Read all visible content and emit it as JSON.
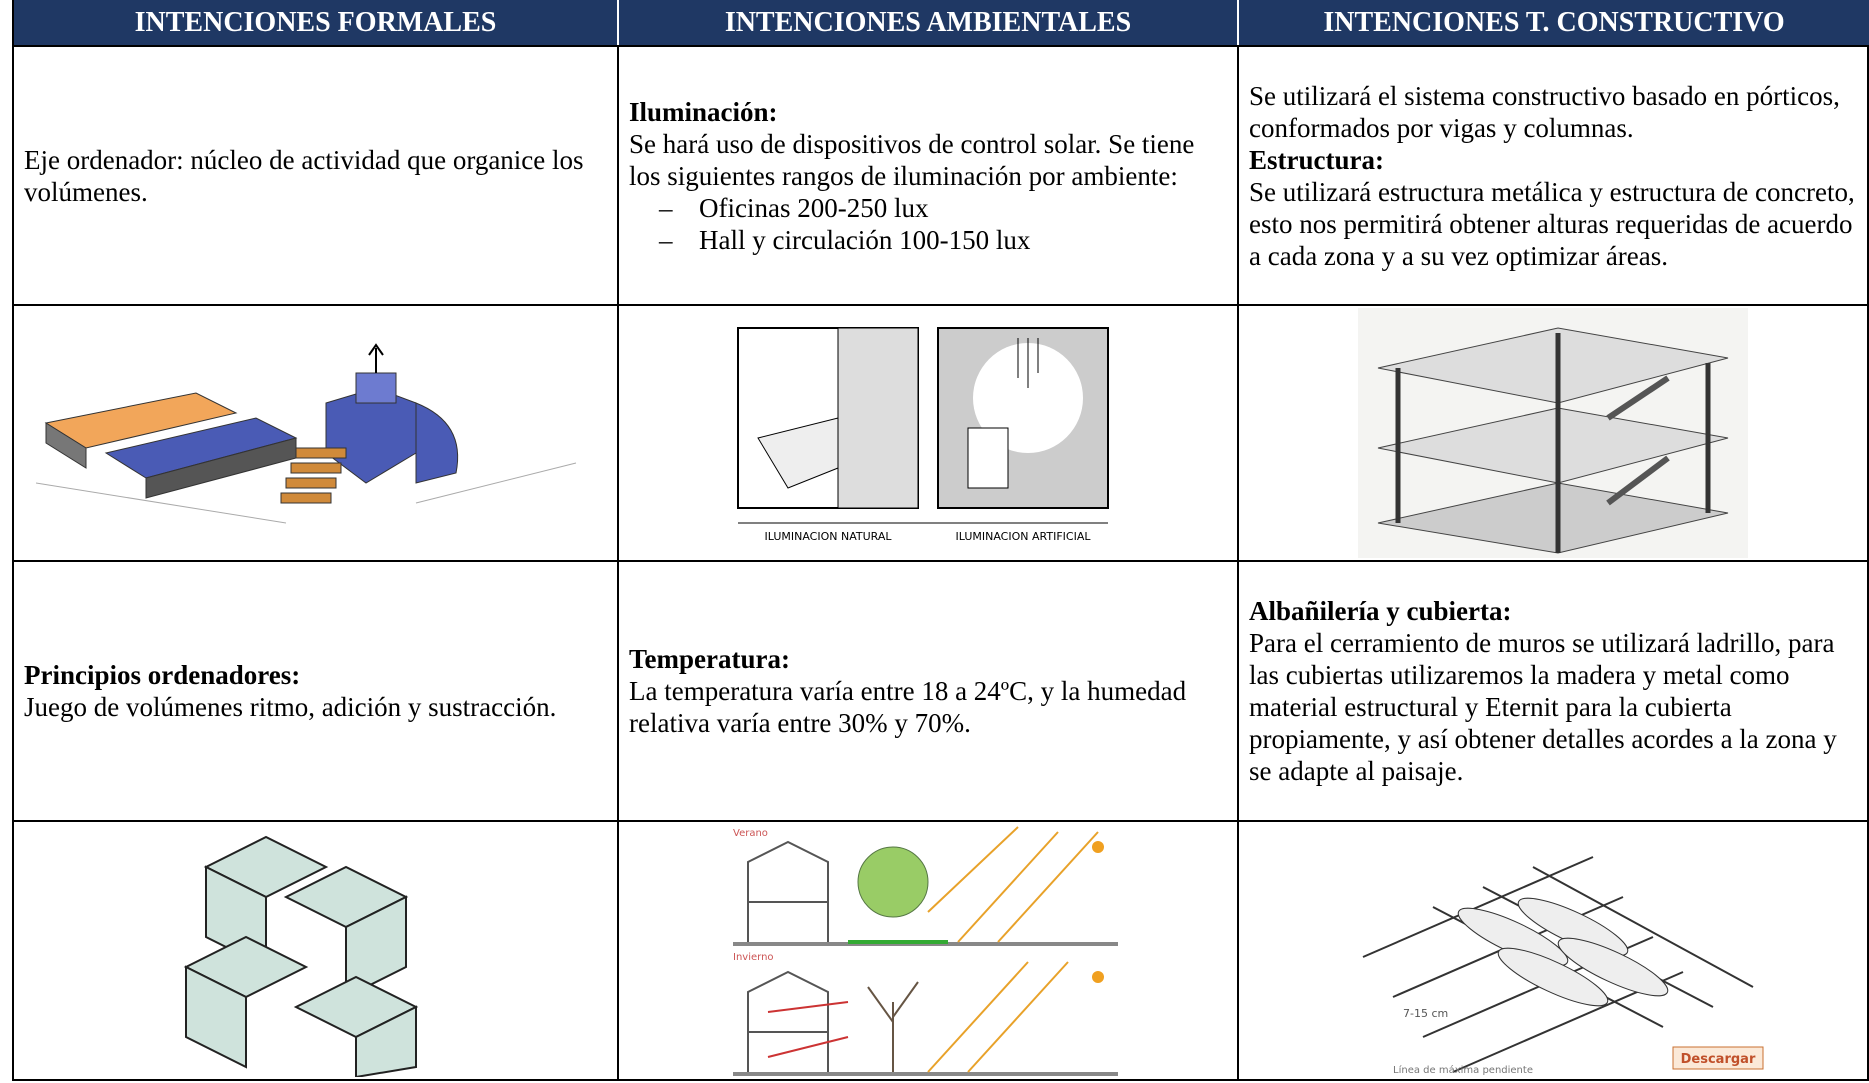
{
  "header": {
    "columns": [
      "INTENCIONES FORMALES",
      "INTENCIONES AMBIENTALES",
      "INTENCIONES T. CONSTRUCTIVO"
    ]
  },
  "rows": [
    {
      "cells": [
        {
          "body": "Eje ordenador: núcleo de actividad que organice los volúmenes."
        },
        {
          "heading": "Iluminación:",
          "body": "Se hará uso de dispositivos de control solar. Se tiene los siguientes rangos de iluminación por ambiente:",
          "list": [
            "Oficinas 200-250 lux",
            "Hall y circulación 100-150 lux"
          ]
        },
        {
          "intro": "Se utilizará el sistema constructivo basado en pórticos, conformados por vigas y columnas.",
          "heading": "Estructura:",
          "body": "Se utilizará estructura metálica y estructura de concreto, esto nos permitirá obtener alturas requeridas de acuerdo a cada zona y a su vez optimizar áreas."
        }
      ]
    },
    {
      "cells": [
        {},
        {
          "captions": [
            "ILUMINACION NATURAL",
            "ILUMINACION ARTIFICIAL"
          ]
        },
        {}
      ]
    },
    {
      "cells": [
        {
          "heading": "Principios ordenadores:",
          "body": "Juego de volúmenes ritmo, adición y sustracción."
        },
        {
          "heading": "Temperatura:",
          "body": "La temperatura varía entre 18 a 24ºC, y la humedad relativa varía entre 30% y 70%."
        },
        {
          "heading": "Albañilería y cubierta:",
          "body": "Para el cerramiento de muros se utilizará ladrillo, para las cubiertas utilizaremos la madera y metal como material estructural y Eternit para la cubierta propiamente, y así obtener detalles acordes a la zona y se adapte al paisaje."
        }
      ]
    },
    {
      "cells": [
        {},
        {
          "captions": [
            "Verano",
            "Invierno"
          ]
        },
        {
          "captions": [
            "7-15 cm",
            "Línea de máxima pendiente",
            "Descargar"
          ]
        }
      ]
    }
  ]
}
